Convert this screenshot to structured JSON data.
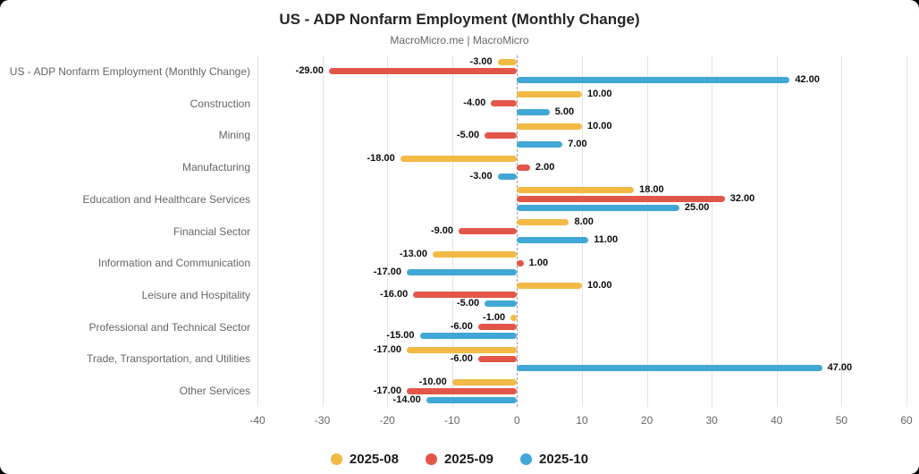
{
  "header": {
    "title": "US - ADP Nonfarm Employment (Monthly Change)",
    "subtitle": "MacroMicro.me | MacroMicro"
  },
  "chart_data": {
    "type": "bar",
    "orientation": "horizontal",
    "title": "US - ADP Nonfarm Employment (Monthly Change)",
    "subtitle": "MacroMicro.me | MacroMicro",
    "categories": [
      "US - ADP Nonfarm Employment (Monthly Change)",
      "Construction",
      "Mining",
      "Manufacturing",
      "Education and Healthcare Services",
      "Financial Sector",
      "Information and Communication",
      "Leisure and Hospitality",
      "Professional and Technical Sector",
      "Trade, Transportation, and Utilities",
      "Other Services"
    ],
    "series": [
      {
        "name": "2025-08",
        "color": "#F2BA45",
        "values": [
          -3,
          10,
          10,
          -18,
          18,
          8,
          -13,
          10,
          -1,
          -17,
          -10
        ]
      },
      {
        "name": "2025-09",
        "color": "#E25649",
        "values": [
          -29,
          -4,
          -5,
          2,
          32,
          -9,
          1,
          -16,
          -6,
          -6,
          -17
        ]
      },
      {
        "name": "2025-10",
        "color": "#41A7D6",
        "values": [
          42,
          5,
          7,
          -3,
          25,
          11,
          -17,
          -5,
          -15,
          47,
          -14
        ]
      }
    ],
    "xlim": [
      -40,
      60
    ],
    "xticks": [
      -40,
      -30,
      -20,
      -10,
      0,
      10,
      20,
      30,
      40,
      50,
      60
    ],
    "grid": true,
    "zero_line": "dashed",
    "value_label_decimals": 2,
    "legend_position": "bottom"
  }
}
